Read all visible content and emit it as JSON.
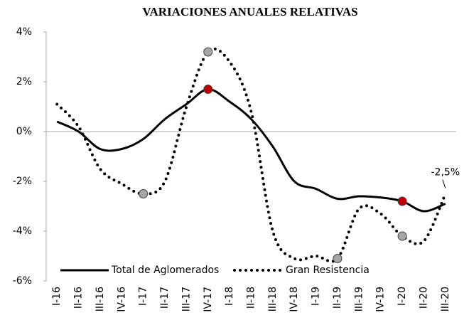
{
  "chart_data": {
    "type": "line",
    "title": "VARIACIONES ANUALES RELATIVAS",
    "categories": [
      "I-16",
      "II-16",
      "III-16",
      "IV-16",
      "I-17",
      "II-17",
      "III-17",
      "IV-17",
      "I-18",
      "II-18",
      "III-18",
      "IV-18",
      "I-19",
      "II-19",
      "III-19",
      "IV-19",
      "I-20",
      "II-20",
      "III-20"
    ],
    "series": [
      {
        "name": "Total de Aglomerados",
        "color": "#000000",
        "style": "solid",
        "marker_color": "#c00000",
        "markers": [
          7,
          16
        ],
        "values": [
          0.4,
          0.0,
          -0.7,
          -0.7,
          -0.3,
          0.5,
          1.1,
          1.7,
          1.2,
          0.5,
          -0.6,
          -2.0,
          -2.3,
          -2.7,
          -2.6,
          -2.65,
          -2.8,
          -3.2,
          -2.9
        ]
      },
      {
        "name": "Gran Resistencia",
        "color": "#000000",
        "style": "dotted",
        "marker_color": "#a6a6a6",
        "markers": [
          4,
          7,
          13,
          16
        ],
        "values": [
          1.1,
          0.2,
          -1.5,
          -2.1,
          -2.5,
          -2.0,
          1.0,
          3.2,
          2.8,
          0.8,
          -4.0,
          -5.1,
          -5.0,
          -5.1,
          -3.1,
          -3.3,
          -4.2,
          -4.4,
          -2.5
        ],
        "value_labels": [
          null,
          null,
          null,
          null,
          null,
          null,
          null,
          null,
          null,
          null,
          null,
          null,
          null,
          null,
          null,
          null,
          null,
          null,
          "-2,5%"
        ]
      }
    ],
    "ylim": [
      -6,
      4
    ],
    "yticks": [
      {
        "value": -6,
        "label": "-6%"
      },
      {
        "value": -4,
        "label": "-4%"
      },
      {
        "value": -2,
        "label": "-2%"
      },
      {
        "value": 0,
        "label": "0%"
      },
      {
        "value": 2,
        "label": "2%"
      },
      {
        "value": 4,
        "label": "4%"
      }
    ],
    "legend": "bottom"
  }
}
